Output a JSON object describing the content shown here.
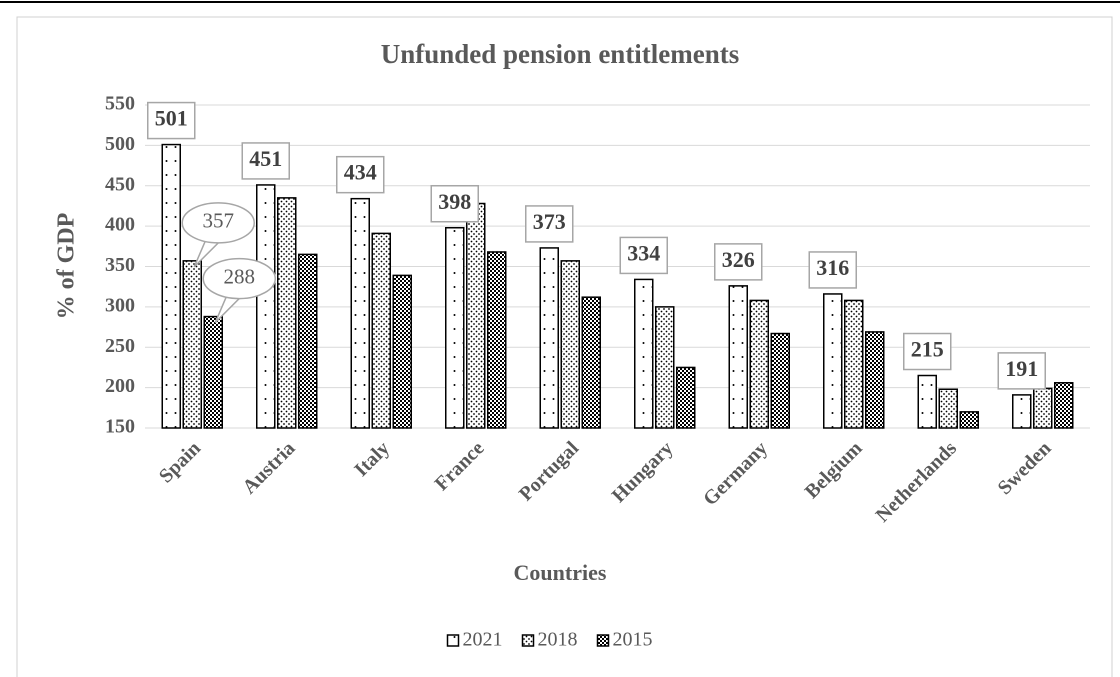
{
  "chart_data": {
    "type": "bar",
    "title": "Unfunded pension entitlements",
    "x_label": "Countries",
    "y_label": "% of GDP",
    "categories": [
      "Spain",
      "Austria",
      "Italy",
      "France",
      "Portugal",
      "Hungary",
      "Germany",
      "Belgium",
      "Netherlands",
      "Sweden"
    ],
    "series": [
      {
        "name": "2021",
        "pattern": "sparse-dots",
        "color": "#000000",
        "values": [
          501,
          451,
          434,
          398,
          373,
          334,
          326,
          316,
          215,
          191
        ],
        "label_style": "box",
        "label_points": [
          0,
          1,
          2,
          3,
          4,
          5,
          6,
          7,
          8,
          9
        ]
      },
      {
        "name": "2018",
        "pattern": "dense-dots",
        "color": "#000000",
        "values": [
          357,
          435,
          391,
          428,
          357,
          300,
          308,
          308,
          198,
          199
        ],
        "label_style": "callout",
        "label_points": [
          0
        ]
      },
      {
        "name": "2015",
        "pattern": "checker",
        "color": "#000000",
        "values": [
          288,
          365,
          339,
          368,
          312,
          225,
          267,
          269,
          170,
          206
        ],
        "label_style": "callout",
        "label_points": [
          0
        ]
      }
    ],
    "ylim": [
      150,
      550
    ],
    "yticks": [
      150,
      200,
      250,
      300,
      350,
      400,
      450,
      500,
      550
    ],
    "grid": true,
    "legend": "bottom"
  }
}
